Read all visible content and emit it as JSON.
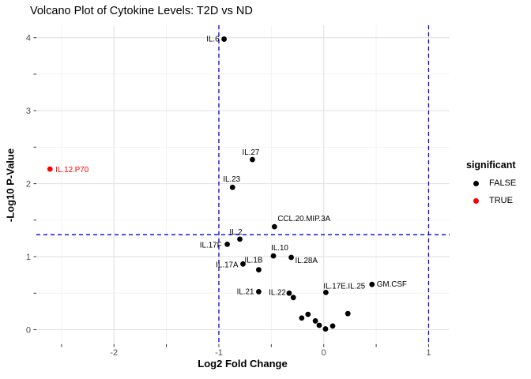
{
  "title": "Volcano Plot of Cytokine Levels: T2D vs ND",
  "legend": {
    "title": "significant",
    "items": [
      {
        "label": "FALSE",
        "color": "#000000"
      },
      {
        "label": "TRUE",
        "color": "#ff0000"
      }
    ]
  },
  "colors": {
    "background": "#ffffff",
    "grid_major": "#e2e2e2",
    "grid_minor": "#f0f0f0",
    "tick_label": "#4d4d4d",
    "threshold_line": "#0000e6",
    "point_false": "#000000",
    "point_true": "#ff0000"
  },
  "chart_data": {
    "type": "scatter",
    "title": "Volcano Plot of Cytokine Levels: T2D vs ND",
    "xlabel": "Log2 Fold Change",
    "ylabel": "-Log10 P-Value",
    "xlim": [
      -2.74,
      1.2
    ],
    "ylim": [
      -0.2,
      4.17
    ],
    "x_ticks": [
      -2,
      -1,
      0,
      1
    ],
    "y_ticks": [
      0,
      1,
      2,
      3,
      4
    ],
    "x_minor": [
      -2.5,
      -1.5,
      -0.5,
      0.5
    ],
    "y_minor": [
      0.5,
      1.5,
      2.5,
      3.5
    ],
    "tick_step": 0.5,
    "grid": true,
    "legend_position": "right",
    "thresholds": {
      "hline_y": 1.3,
      "vlines_x": [
        -1,
        1
      ],
      "style": "dashed",
      "color": "#0000e6"
    },
    "series": [
      {
        "name": "FALSE",
        "color": "#000000",
        "points": [
          {
            "label": "IL.6",
            "x": -0.95,
            "y": 3.98,
            "anchor": "end",
            "dx": -6,
            "dy": 3
          },
          {
            "label": "IL.27",
            "x": -0.68,
            "y": 2.33,
            "anchor": "middle",
            "dx": -2,
            "dy": -6
          },
          {
            "label": "IL.23",
            "x": -0.87,
            "y": 1.95,
            "anchor": "middle",
            "dx": -1,
            "dy": -7
          },
          {
            "label": "CCL.20.MIP.3A",
            "x": -0.47,
            "y": 1.41,
            "anchor": "start",
            "dx": 4,
            "dy": -7
          },
          {
            "label": "IL.2",
            "x": -0.8,
            "y": 1.24,
            "anchor": "middle",
            "dx": -5,
            "dy": -6
          },
          {
            "label": "IL.17F",
            "x": -0.92,
            "y": 1.17,
            "anchor": "end",
            "dx": -7,
            "dy": 4
          },
          {
            "label": "IL.10",
            "x": -0.48,
            "y": 1.01,
            "anchor": "middle",
            "dx": 8,
            "dy": -7
          },
          {
            "label": "IL.28A",
            "x": -0.31,
            "y": 0.99,
            "anchor": "start",
            "dx": 5,
            "dy": 7
          },
          {
            "label": "IL.17A",
            "x": -0.77,
            "y": 0.9,
            "anchor": "end",
            "dx": -6,
            "dy": 4
          },
          {
            "label": "IL.1B",
            "x": -0.62,
            "y": 0.82,
            "anchor": "end",
            "dx": 5,
            "dy": -9
          },
          {
            "label": "IL.21",
            "x": -0.62,
            "y": 0.52,
            "anchor": "end",
            "dx": -6,
            "dy": 3
          },
          {
            "label": "IL.22",
            "x": -0.33,
            "y": 0.5,
            "anchor": "end",
            "dx": -4,
            "dy": 2
          },
          {
            "label": "IL.17E.IL.25",
            "x": 0.02,
            "y": 0.51,
            "anchor": "start",
            "dx": -3,
            "dy": -5
          },
          {
            "label": "GM.CSF",
            "x": 0.46,
            "y": 0.62,
            "anchor": "start",
            "dx": 6,
            "dy": 3
          },
          {
            "label": "",
            "x": -0.29,
            "y": 0.44
          },
          {
            "label": "",
            "x": -0.21,
            "y": 0.16
          },
          {
            "label": "",
            "x": -0.15,
            "y": 0.21
          },
          {
            "label": "",
            "x": -0.08,
            "y": 0.12
          },
          {
            "label": "",
            "x": -0.043,
            "y": 0.06
          },
          {
            "label": "",
            "x": 0.017,
            "y": 0.01
          },
          {
            "label": "",
            "x": 0.085,
            "y": 0.05
          },
          {
            "label": "",
            "x": 0.23,
            "y": 0.22
          }
        ]
      },
      {
        "name": "TRUE",
        "color": "#ff0000",
        "points": [
          {
            "label": "IL.12.P70",
            "x": -2.61,
            "y": 2.2,
            "anchor": "start",
            "dx": 7,
            "dy": 4
          }
        ]
      }
    ]
  }
}
